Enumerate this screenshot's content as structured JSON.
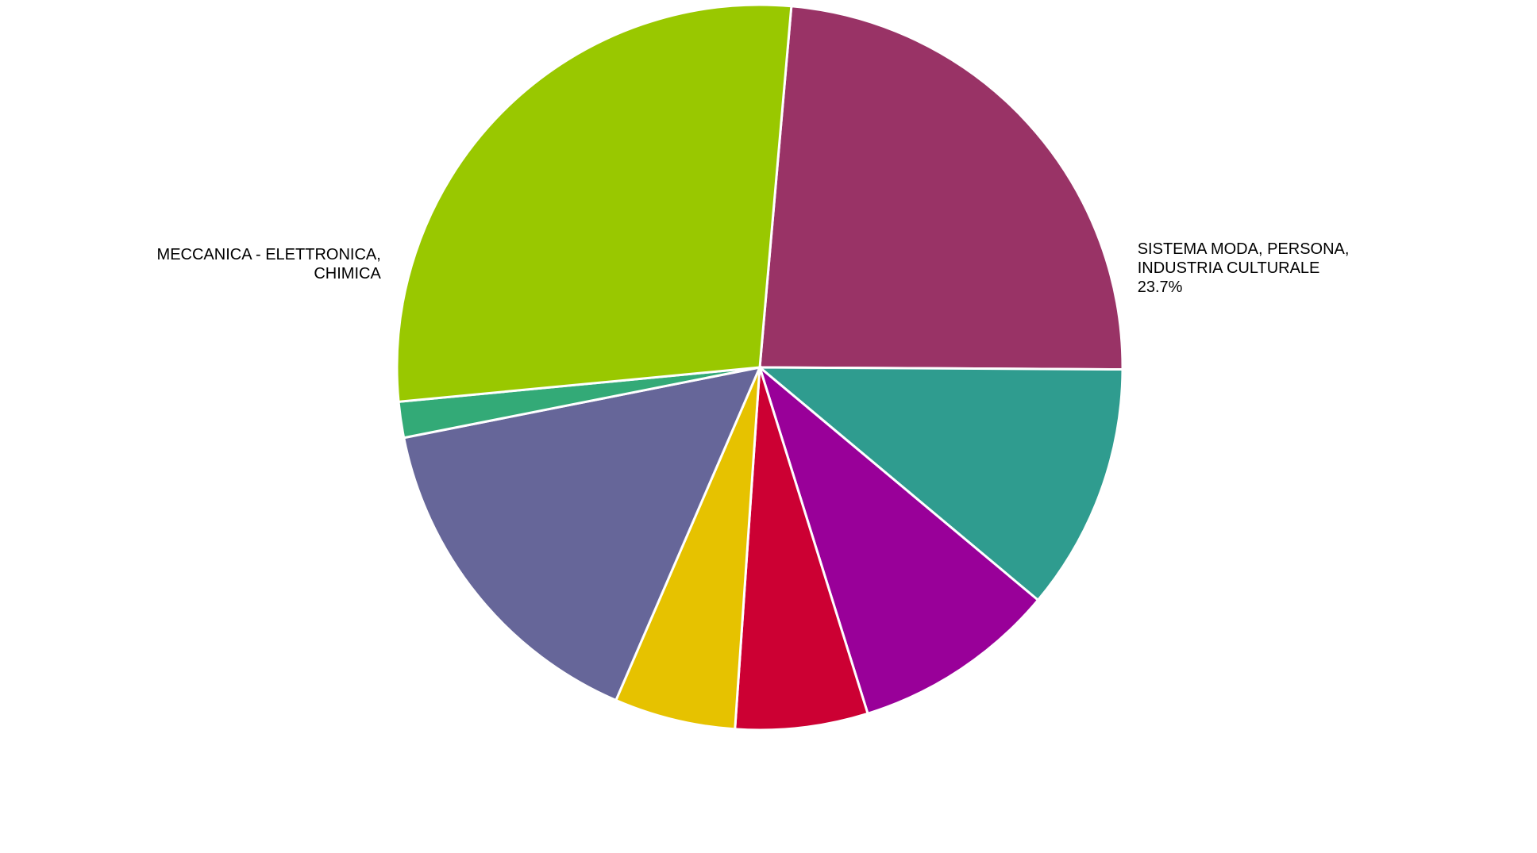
{
  "chart_data": {
    "type": "pie",
    "categories": [
      "SISTEMA MODA, PERSONA, INDUSTRIA CULTURALE",
      null,
      null,
      null,
      null,
      null,
      null,
      "MECCANICA - ELETTRONICA, CHIMICA"
    ],
    "values": [
      23.7,
      11.0,
      9.1,
      5.9,
      5.4,
      15.4,
      1.6,
      27.9
    ],
    "value_labels": [
      "23.7%",
      null,
      null,
      null,
      null,
      null,
      null,
      null
    ],
    "colors": [
      "#993366",
      "#2f9c8f",
      "#990099",
      "#cc0033",
      "#e6c200",
      "#666699",
      "#33aa77",
      "#99c800"
    ]
  }
}
